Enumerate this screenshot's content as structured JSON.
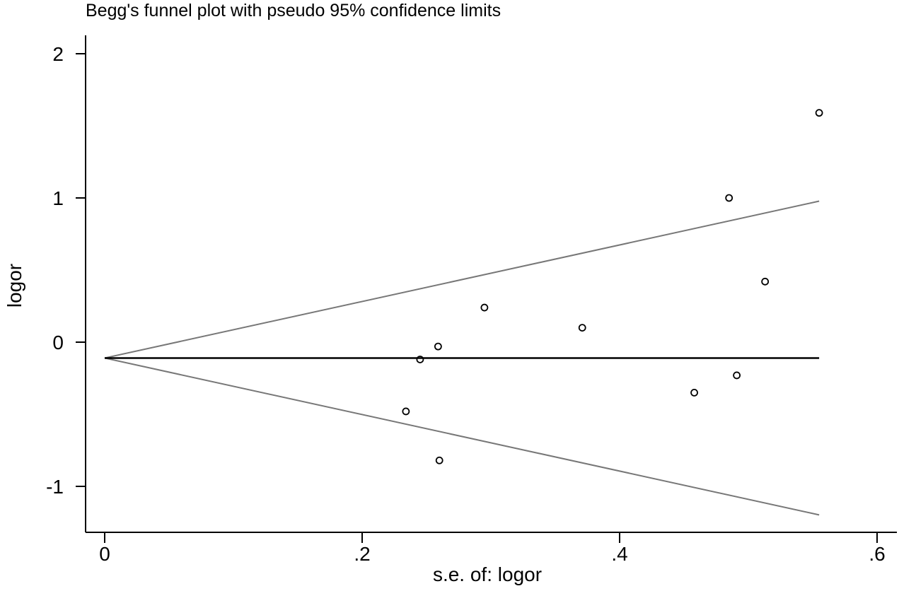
{
  "chart_data": {
    "type": "scatter",
    "title": "Begg's funnel plot with pseudo 95% confidence limits",
    "xlabel": "s.e. of: logor",
    "ylabel": "logor",
    "xlim": [
      0,
      0.6
    ],
    "ylim": [
      -1.2,
      2.05
    ],
    "x_ticks": [
      {
        "value": 0,
        "label": "0"
      },
      {
        "value": 0.2,
        "label": ".2"
      },
      {
        "value": 0.4,
        "label": ".4"
      },
      {
        "value": 0.6,
        "label": ".6"
      }
    ],
    "y_ticks": [
      {
        "value": -1,
        "label": "-1"
      },
      {
        "value": 0,
        "label": "0"
      },
      {
        "value": 1,
        "label": "1"
      },
      {
        "value": 2,
        "label": "2"
      }
    ],
    "grid": false,
    "legend": "none",
    "pooled_estimate": -0.11,
    "se_range": [
      0,
      0.555
    ],
    "series": [
      {
        "name": "studies",
        "points": [
          {
            "x": 0.234,
            "y": -0.48
          },
          {
            "x": 0.245,
            "y": -0.12
          },
          {
            "x": 0.259,
            "y": -0.03
          },
          {
            "x": 0.26,
            "y": -0.82
          },
          {
            "x": 0.295,
            "y": 0.24
          },
          {
            "x": 0.371,
            "y": 0.1
          },
          {
            "x": 0.458,
            "y": -0.35
          },
          {
            "x": 0.485,
            "y": 1.0
          },
          {
            "x": 0.491,
            "y": -0.23
          },
          {
            "x": 0.513,
            "y": 0.42
          },
          {
            "x": 0.555,
            "y": 1.59
          }
        ]
      }
    ]
  }
}
